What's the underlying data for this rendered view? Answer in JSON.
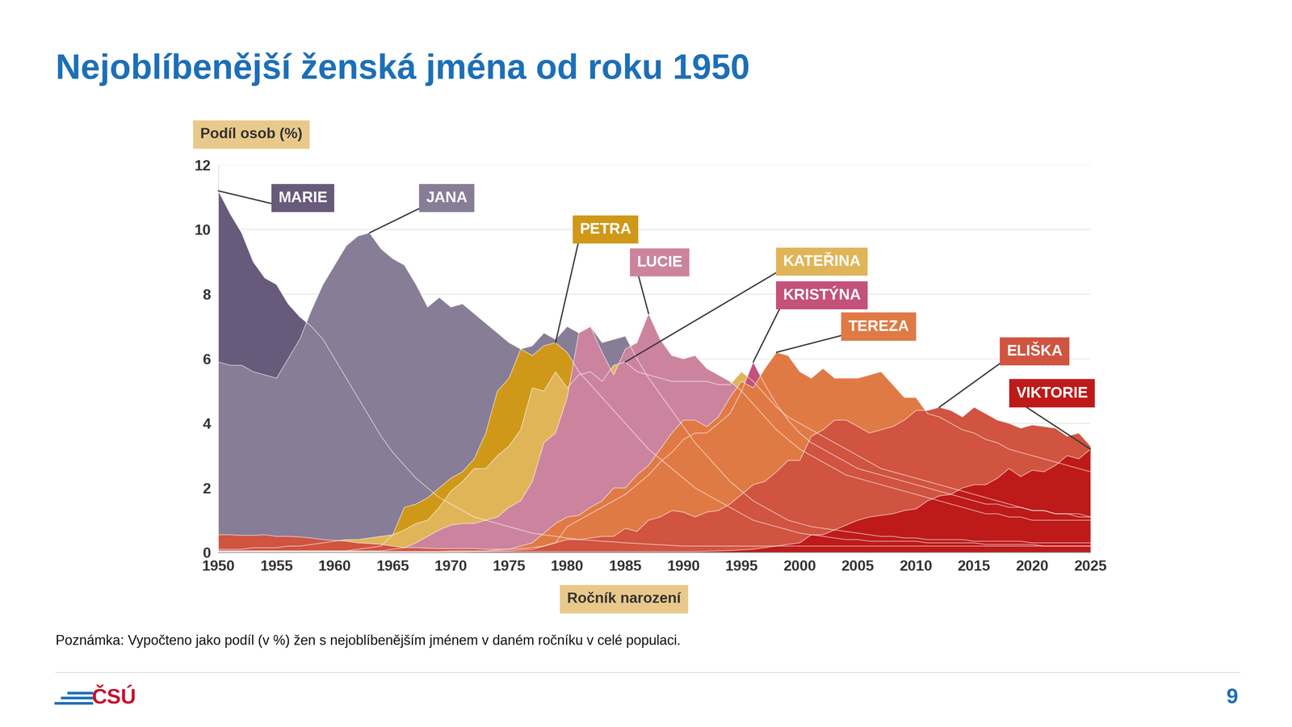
{
  "chart_data": {
    "type": "area",
    "stacked": false,
    "title": "Nejoblíbenější ženská jména od roku 1950",
    "y_label": "Podíl osob (%)",
    "x_label": "Ročník narození",
    "note": "Poznámka: Vypočteno jako podíl (v %) žen s nejoblíbenějším jménem v daném ročníku v celé populaci.",
    "logo": "ČSÚ",
    "page": "9",
    "grid": true,
    "xlim": [
      1950,
      2025
    ],
    "ylim": [
      0,
      12
    ],
    "xticks": [
      1950,
      1955,
      1960,
      1965,
      1970,
      1975,
      1980,
      1985,
      1990,
      1995,
      2000,
      2005,
      2010,
      2015,
      2020,
      2025
    ],
    "yticks": [
      0,
      2,
      4,
      6,
      8,
      10,
      12
    ],
    "x": [
      1950,
      1951,
      1952,
      1953,
      1954,
      1955,
      1956,
      1957,
      1958,
      1959,
      1960,
      1961,
      1962,
      1963,
      1964,
      1965,
      1966,
      1967,
      1968,
      1969,
      1970,
      1971,
      1972,
      1973,
      1974,
      1975,
      1976,
      1977,
      1978,
      1979,
      1980,
      1981,
      1982,
      1983,
      1984,
      1985,
      1986,
      1987,
      1988,
      1989,
      1990,
      1991,
      1992,
      1993,
      1994,
      1995,
      1996,
      1997,
      1998,
      1999,
      2000,
      2001,
      2002,
      2003,
      2004,
      2005,
      2006,
      2007,
      2008,
      2009,
      2010,
      2011,
      2012,
      2013,
      2014,
      2015,
      2016,
      2017,
      2018,
      2019,
      2020,
      2021,
      2022,
      2023,
      2024,
      2025
    ],
    "series": [
      {
        "name": "MARIE",
        "color": "#675a7a",
        "values": [
          11.2,
          10.5,
          9.9,
          9.0,
          8.5,
          8.3,
          7.7,
          7.3,
          7.0,
          6.6,
          6.0,
          5.4,
          4.8,
          4.2,
          3.6,
          3.1,
          2.7,
          2.3,
          2.0,
          1.7,
          1.5,
          1.3,
          1.1,
          1.0,
          0.9,
          0.8,
          0.7,
          0.6,
          0.55,
          0.5,
          0.45,
          0.4,
          0.38,
          0.35,
          0.33,
          0.3,
          0.28,
          0.26,
          0.24,
          0.22,
          0.2,
          0.2,
          0.2,
          0.2,
          0.2,
          0.2,
          0.2,
          0.2,
          0.2,
          0.2,
          0.2,
          0.2,
          0.2,
          0.2,
          0.2,
          0.2,
          0.2,
          0.2,
          0.2,
          0.2,
          0.2,
          0.2,
          0.2,
          0.2,
          0.2,
          0.2,
          0.2,
          0.2,
          0.2,
          0.2,
          0.2,
          0.2,
          0.2,
          0.2,
          0.2,
          0.2
        ]
      },
      {
        "name": "JANA",
        "color": "#877d96",
        "values": [
          5.9,
          5.8,
          5.8,
          5.6,
          5.5,
          5.4,
          6.0,
          6.6,
          7.5,
          8.3,
          8.9,
          9.5,
          9.8,
          9.9,
          9.4,
          9.1,
          8.9,
          8.3,
          7.6,
          7.9,
          7.6,
          7.7,
          7.4,
          7.1,
          6.8,
          6.5,
          6.3,
          6.4,
          6.8,
          6.6,
          7.0,
          6.8,
          7.0,
          6.5,
          6.6,
          6.7,
          6.0,
          5.4,
          4.9,
          4.4,
          3.9,
          3.4,
          3.0,
          2.6,
          2.2,
          1.9,
          1.6,
          1.4,
          1.2,
          1.0,
          0.9,
          0.8,
          0.75,
          0.7,
          0.65,
          0.6,
          0.55,
          0.5,
          0.5,
          0.45,
          0.45,
          0.4,
          0.4,
          0.4,
          0.4,
          0.35,
          0.35,
          0.35,
          0.35,
          0.35,
          0.3,
          0.3,
          0.3,
          0.3,
          0.3,
          0.3
        ]
      },
      {
        "name": "PETRA",
        "color": "#cf9818",
        "values": [
          0.05,
          0.05,
          0.05,
          0.05,
          0.05,
          0.05,
          0.05,
          0.05,
          0.05,
          0.05,
          0.05,
          0.05,
          0.1,
          0.15,
          0.2,
          0.55,
          1.4,
          1.5,
          1.7,
          2.0,
          2.3,
          2.5,
          2.9,
          3.7,
          5.0,
          5.4,
          6.3,
          6.1,
          6.4,
          6.5,
          6.2,
          5.6,
          5.2,
          4.8,
          4.4,
          4.0,
          3.6,
          3.2,
          2.9,
          2.6,
          2.3,
          2.0,
          1.8,
          1.6,
          1.4,
          1.2,
          1.0,
          0.9,
          0.8,
          0.7,
          0.6,
          0.55,
          0.5,
          0.45,
          0.4,
          0.4,
          0.35,
          0.35,
          0.35,
          0.35,
          0.35,
          0.3,
          0.3,
          0.3,
          0.3,
          0.3,
          0.25,
          0.25,
          0.25,
          0.25,
          0.25,
          0.2,
          0.2,
          0.2,
          0.2,
          0.2
        ]
      },
      {
        "name": "KATEŘINA",
        "color": "#e0b558",
        "values": [
          0.1,
          0.1,
          0.1,
          0.15,
          0.15,
          0.15,
          0.2,
          0.2,
          0.25,
          0.3,
          0.35,
          0.4,
          0.4,
          0.45,
          0.5,
          0.55,
          0.7,
          0.9,
          1.0,
          1.4,
          1.9,
          2.2,
          2.6,
          2.6,
          3.0,
          3.3,
          3.8,
          5.1,
          5.0,
          5.6,
          5.1,
          5.5,
          5.6,
          5.3,
          5.8,
          5.9,
          5.6,
          5.5,
          5.4,
          5.3,
          5.3,
          5.3,
          5.3,
          5.2,
          5.2,
          5.6,
          5.3,
          4.9,
          4.5,
          4.2,
          4.0,
          3.8,
          3.6,
          3.4,
          3.2,
          3.0,
          2.8,
          2.6,
          2.5,
          2.4,
          2.3,
          2.2,
          2.1,
          2.0,
          1.9,
          1.8,
          1.7,
          1.6,
          1.5,
          1.4,
          1.3,
          1.3,
          1.2,
          1.2,
          1.1,
          1.1
        ]
      },
      {
        "name": "LUCIE",
        "color": "#cc849e",
        "values": [
          0.05,
          0.05,
          0.05,
          0.05,
          0.05,
          0.05,
          0.05,
          0.05,
          0.05,
          0.05,
          0.05,
          0.05,
          0.05,
          0.05,
          0.05,
          0.1,
          0.15,
          0.3,
          0.5,
          0.7,
          0.85,
          0.9,
          0.9,
          1.0,
          1.1,
          1.4,
          1.6,
          2.2,
          3.4,
          3.7,
          4.8,
          6.8,
          7.0,
          6.2,
          5.5,
          6.3,
          6.5,
          7.4,
          6.6,
          6.1,
          6.0,
          6.1,
          5.7,
          5.5,
          5.3,
          5.0,
          4.6,
          4.2,
          3.8,
          3.5,
          3.2,
          3.0,
          2.8,
          2.6,
          2.4,
          2.3,
          2.2,
          2.1,
          2.0,
          1.9,
          1.8,
          1.7,
          1.6,
          1.5,
          1.4,
          1.3,
          1.2,
          1.2,
          1.1,
          1.1,
          1.0,
          1.0,
          1.0,
          1.0,
          1.0,
          1.0
        ]
      },
      {
        "name": "KRISTÝNA",
        "color": "#c4517a",
        "values": [
          0.02,
          0.02,
          0.02,
          0.02,
          0.02,
          0.02,
          0.02,
          0.02,
          0.02,
          0.02,
          0.02,
          0.02,
          0.02,
          0.02,
          0.02,
          0.02,
          0.02,
          0.02,
          0.02,
          0.02,
          0.02,
          0.02,
          0.03,
          0.03,
          0.05,
          0.05,
          0.08,
          0.1,
          0.2,
          0.3,
          0.8,
          1.0,
          1.2,
          1.4,
          1.6,
          1.8,
          2.1,
          2.4,
          2.8,
          3.1,
          3.5,
          3.7,
          3.7,
          4.0,
          4.3,
          5.0,
          5.9,
          5.2,
          4.6,
          4.1,
          3.7,
          3.4,
          3.2,
          3.0,
          2.8,
          2.6,
          2.5,
          2.4,
          2.3,
          2.2,
          2.1,
          2.0,
          1.9,
          1.8,
          1.7,
          1.6,
          1.5,
          1.5,
          1.4,
          1.4,
          1.3,
          1.3,
          1.2,
          1.2,
          1.2,
          1.1
        ]
      },
      {
        "name": "TEREZA",
        "color": "#e07a45",
        "values": [
          0.03,
          0.03,
          0.03,
          0.03,
          0.03,
          0.03,
          0.03,
          0.03,
          0.03,
          0.03,
          0.03,
          0.03,
          0.03,
          0.03,
          0.03,
          0.03,
          0.03,
          0.03,
          0.03,
          0.03,
          0.05,
          0.05,
          0.05,
          0.05,
          0.08,
          0.1,
          0.2,
          0.3,
          0.6,
          0.9,
          1.1,
          1.15,
          1.4,
          1.6,
          2.0,
          2.0,
          2.4,
          2.7,
          3.2,
          3.7,
          4.1,
          4.1,
          3.9,
          4.2,
          4.8,
          5.3,
          5.1,
          5.7,
          6.2,
          6.1,
          5.6,
          5.4,
          5.7,
          5.4,
          5.4,
          5.4,
          5.5,
          5.6,
          5.2,
          4.8,
          4.8,
          4.3,
          4.2,
          4.0,
          3.8,
          3.7,
          3.5,
          3.4,
          3.2,
          3.1,
          3.0,
          2.9,
          2.8,
          2.7,
          2.6,
          2.5
        ]
      },
      {
        "name": "ELIŠKA",
        "color": "#d05440",
        "values": [
          0.55,
          0.55,
          0.53,
          0.53,
          0.55,
          0.5,
          0.5,
          0.48,
          0.45,
          0.4,
          0.38,
          0.35,
          0.3,
          0.28,
          0.25,
          0.2,
          0.15,
          0.15,
          0.13,
          0.12,
          0.12,
          0.12,
          0.12,
          0.1,
          0.1,
          0.1,
          0.12,
          0.15,
          0.2,
          0.3,
          0.4,
          0.4,
          0.45,
          0.5,
          0.5,
          0.75,
          0.65,
          1.0,
          1.1,
          1.3,
          1.25,
          1.1,
          1.25,
          1.3,
          1.5,
          1.8,
          2.1,
          2.2,
          2.5,
          2.85,
          2.85,
          3.6,
          3.8,
          4.1,
          4.1,
          3.9,
          3.7,
          3.8,
          3.9,
          4.1,
          4.4,
          4.4,
          4.5,
          4.4,
          4.2,
          4.5,
          4.3,
          4.1,
          4.0,
          3.85,
          3.95,
          3.9,
          3.85,
          3.6,
          3.7,
          3.3
        ]
      },
      {
        "name": "VIKTORIE",
        "color": "#be1a1a",
        "values": [
          0.03,
          0.03,
          0.03,
          0.03,
          0.03,
          0.03,
          0.03,
          0.03,
          0.03,
          0.03,
          0.03,
          0.03,
          0.03,
          0.03,
          0.03,
          0.03,
          0.03,
          0.03,
          0.03,
          0.03,
          0.03,
          0.03,
          0.03,
          0.03,
          0.03,
          0.03,
          0.03,
          0.03,
          0.03,
          0.03,
          0.03,
          0.03,
          0.03,
          0.03,
          0.03,
          0.03,
          0.03,
          0.03,
          0.03,
          0.03,
          0.03,
          0.03,
          0.04,
          0.05,
          0.06,
          0.08,
          0.1,
          0.15,
          0.2,
          0.25,
          0.3,
          0.55,
          0.55,
          0.7,
          0.85,
          1.0,
          1.1,
          1.15,
          1.2,
          1.3,
          1.35,
          1.6,
          1.75,
          1.8,
          2.0,
          2.1,
          2.1,
          2.3,
          2.6,
          2.35,
          2.55,
          2.5,
          2.7,
          3.0,
          2.9,
          3.2
        ]
      }
    ]
  }
}
